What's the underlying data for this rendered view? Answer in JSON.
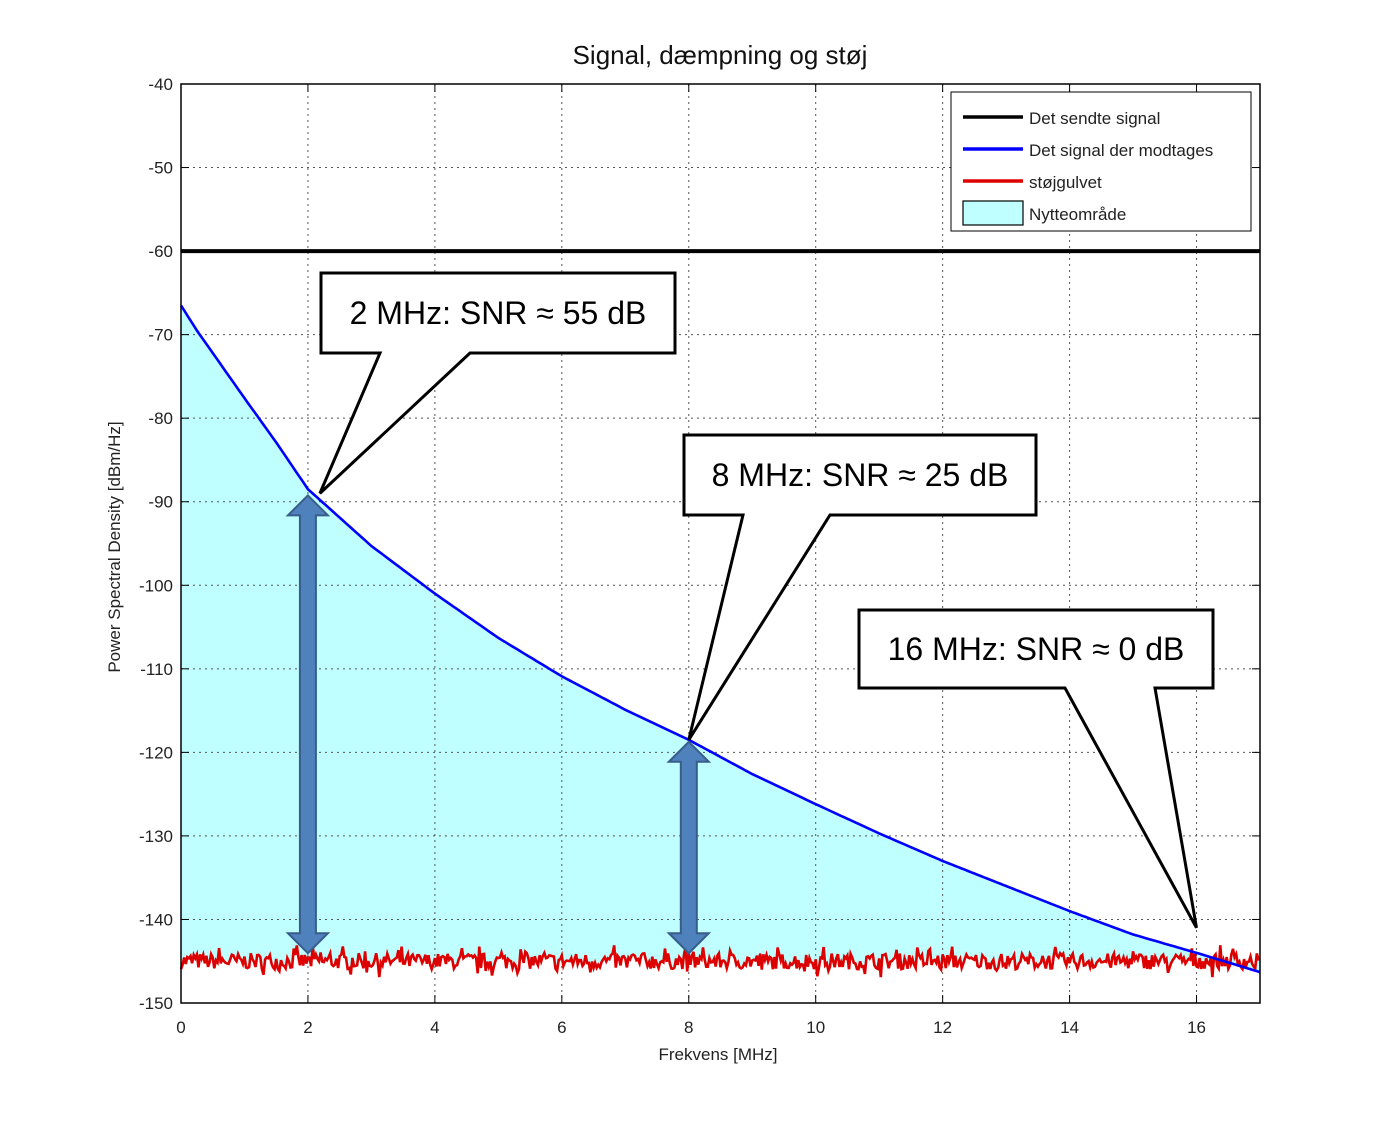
{
  "chart_data": {
    "type": "line",
    "title": "Signal, dæmpning og støj",
    "xlabel": "Frekvens [MHz]",
    "ylabel": "Power Spectral Density [dBm/Hz]",
    "xlim": [
      0,
      17
    ],
    "ylim": [
      -150,
      -40
    ],
    "xticks": [
      0,
      2,
      4,
      6,
      8,
      10,
      12,
      14,
      16
    ],
    "yticks": [
      -40,
      -50,
      -60,
      -70,
      -80,
      -90,
      -100,
      -110,
      -120,
      -130,
      -140,
      -150
    ],
    "grid": true,
    "legend_position": "top-right",
    "series": [
      {
        "name": "Det sendte signal",
        "color": "#000000",
        "x": [
          0,
          17
        ],
        "y": [
          -60,
          -60
        ]
      },
      {
        "name": "Det signal der modtages",
        "color": "#0000ff",
        "x": [
          0,
          0.25,
          0.5,
          1,
          1.5,
          2,
          3,
          4,
          5,
          6,
          7,
          8,
          9,
          10,
          11,
          12,
          13,
          14,
          15,
          16,
          17
        ],
        "y": [
          -66.5,
          -69.5,
          -72.2,
          -77.6,
          -82.9,
          -88.5,
          -95.3,
          -101,
          -106.3,
          -110.9,
          -114.9,
          -118.5,
          -122.6,
          -126.2,
          -129.7,
          -133.0,
          -136.0,
          -139.0,
          -141.8,
          -144.0,
          -146.3
        ]
      },
      {
        "name": "støjgulvet",
        "color": "#dd0000",
        "x": [
          0,
          17
        ],
        "y": [
          -145,
          -145
        ],
        "noise_amplitude_db": 1.2
      }
    ],
    "fill": {
      "name": "Nytteområde",
      "color": "#c0ffff",
      "between": [
        "Det signal der modtages",
        "støjgulvet"
      ]
    },
    "annotations": [
      {
        "text": "2 MHz: SNR ≈ 55 dB",
        "x": 2,
        "y": -89
      },
      {
        "text": "8 MHz: SNR ≈ 25 dB",
        "x": 8,
        "y": -118.5
      },
      {
        "text": "16 MHz: SNR ≈ 0 dB",
        "x": 16,
        "y": -141
      }
    ],
    "arrows": [
      {
        "x": 2,
        "y_top": -89,
        "y_bottom": -145,
        "color": "#4f81bd"
      },
      {
        "x": 8,
        "y_top": -118.5,
        "y_bottom": -145,
        "color": "#4f81bd"
      }
    ]
  }
}
